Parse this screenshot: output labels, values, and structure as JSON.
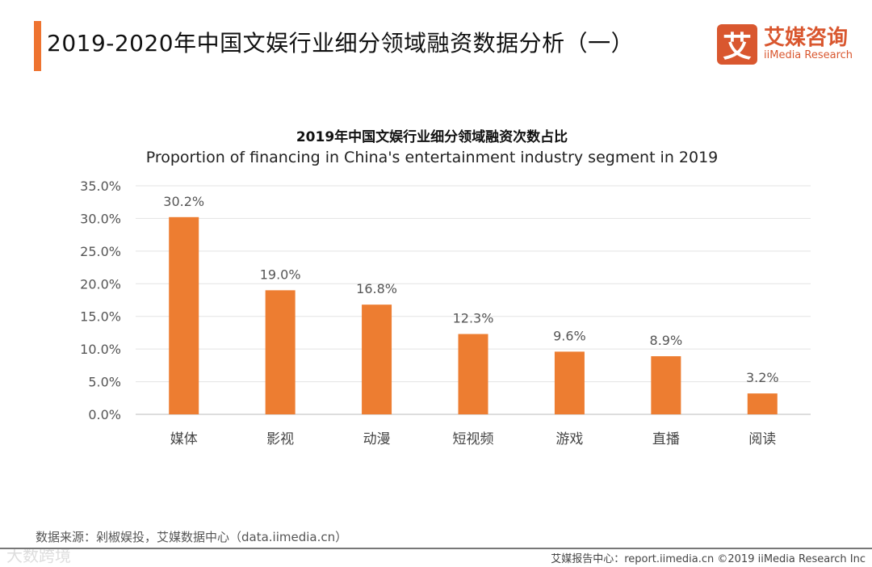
{
  "header": {
    "title": "2019-2020年中国文娱行业细分领域融资数据分析（一）",
    "logo_mark": "艾",
    "logo_cn": "艾媒咨询",
    "logo_en": "iiMedia Research"
  },
  "chart_data": {
    "type": "bar",
    "title": "2019年中国文娱行业细分领域融资次数占比",
    "subtitle": "Proportion of financing in China's entertainment industry segment in 2019",
    "categories": [
      "媒体",
      "影视",
      "动漫",
      "短视频",
      "游戏",
      "直播",
      "阅读"
    ],
    "values": [
      30.2,
      19.0,
      16.8,
      12.3,
      9.6,
      8.9,
      3.2
    ],
    "data_labels": [
      "30.2%",
      "19.0%",
      "16.8%",
      "12.3%",
      "9.6%",
      "8.9%",
      "3.2%"
    ],
    "yticks": [
      "0.0%",
      "5.0%",
      "10.0%",
      "15.0%",
      "20.0%",
      "25.0%",
      "30.0%",
      "35.0%"
    ],
    "ylim": [
      0,
      35
    ],
    "grid": true,
    "color": "#ed7d31"
  },
  "footer": {
    "source": "数据来源：剁椒娱投，艾媒数据中心（data.iimedia.cn）",
    "credit": "艾媒报告中心：report.iimedia.cn  ©2019  iiMedia Research Inc",
    "watermark": "大数跨境"
  }
}
